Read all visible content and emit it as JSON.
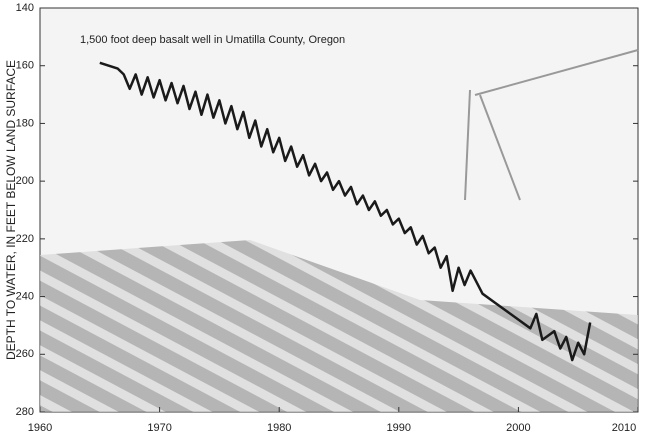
{
  "chart_data": {
    "type": "line",
    "annotation": "1,500 foot deep basalt well in Umatilla County, Oregon",
    "y_label": "DEPTH TO WATER, IN FEET BELOW LAND SURFACE",
    "xlim": [
      1960,
      2010
    ],
    "xticks": [
      1960,
      1970,
      1980,
      1990,
      2000,
      2010
    ],
    "ylim": [
      140,
      280
    ],
    "yticks": [
      140,
      160,
      180,
      200,
      220,
      240,
      260,
      280
    ],
    "y_inverted": true,
    "series": [
      {
        "color": "#1a1a1a",
        "x": [
          1965,
          1966.5,
          1967,
          1967.5,
          1968,
          1968.5,
          1969,
          1969.5,
          1970,
          1970.5,
          1971,
          1971.5,
          1972,
          1972.5,
          1973,
          1973.5,
          1974,
          1974.5,
          1975,
          1975.5,
          1976,
          1976.5,
          1977,
          1977.5,
          1978,
          1978.5,
          1979,
          1979.5,
          1980,
          1980.5,
          1981,
          1981.5,
          1982,
          1982.5,
          1983,
          1983.5,
          1984,
          1984.5,
          1985,
          1985.5,
          1986,
          1986.5,
          1987,
          1987.5,
          1988,
          1988.5,
          1989,
          1989.5,
          1990,
          1990.5,
          1991,
          1991.5,
          1992,
          1992.5,
          1993,
          1993.5,
          1994,
          1994.5,
          1995,
          1995.5,
          1996,
          1997,
          1998,
          1999,
          2000,
          2001,
          2001.5,
          2002,
          2003,
          2003.5,
          2004,
          2004.5,
          2005,
          2005.5,
          2006
        ],
        "values": [
          159,
          161,
          163,
          168,
          163,
          170,
          164,
          171,
          165,
          172,
          166,
          173,
          167,
          175,
          169,
          177,
          170,
          178,
          172,
          180,
          174,
          182,
          176,
          185,
          179,
          188,
          182,
          190,
          185,
          193,
          188,
          195,
          191,
          198,
          194,
          200,
          197,
          203,
          200,
          205,
          202,
          208,
          205,
          210,
          207,
          212,
          210,
          215,
          213,
          218,
          216,
          222,
          219,
          225,
          223,
          230,
          226,
          238,
          230,
          236,
          231,
          239,
          242,
          245,
          248,
          251,
          246,
          255,
          252,
          258,
          254,
          262,
          256,
          260,
          249
        ]
      }
    ]
  }
}
